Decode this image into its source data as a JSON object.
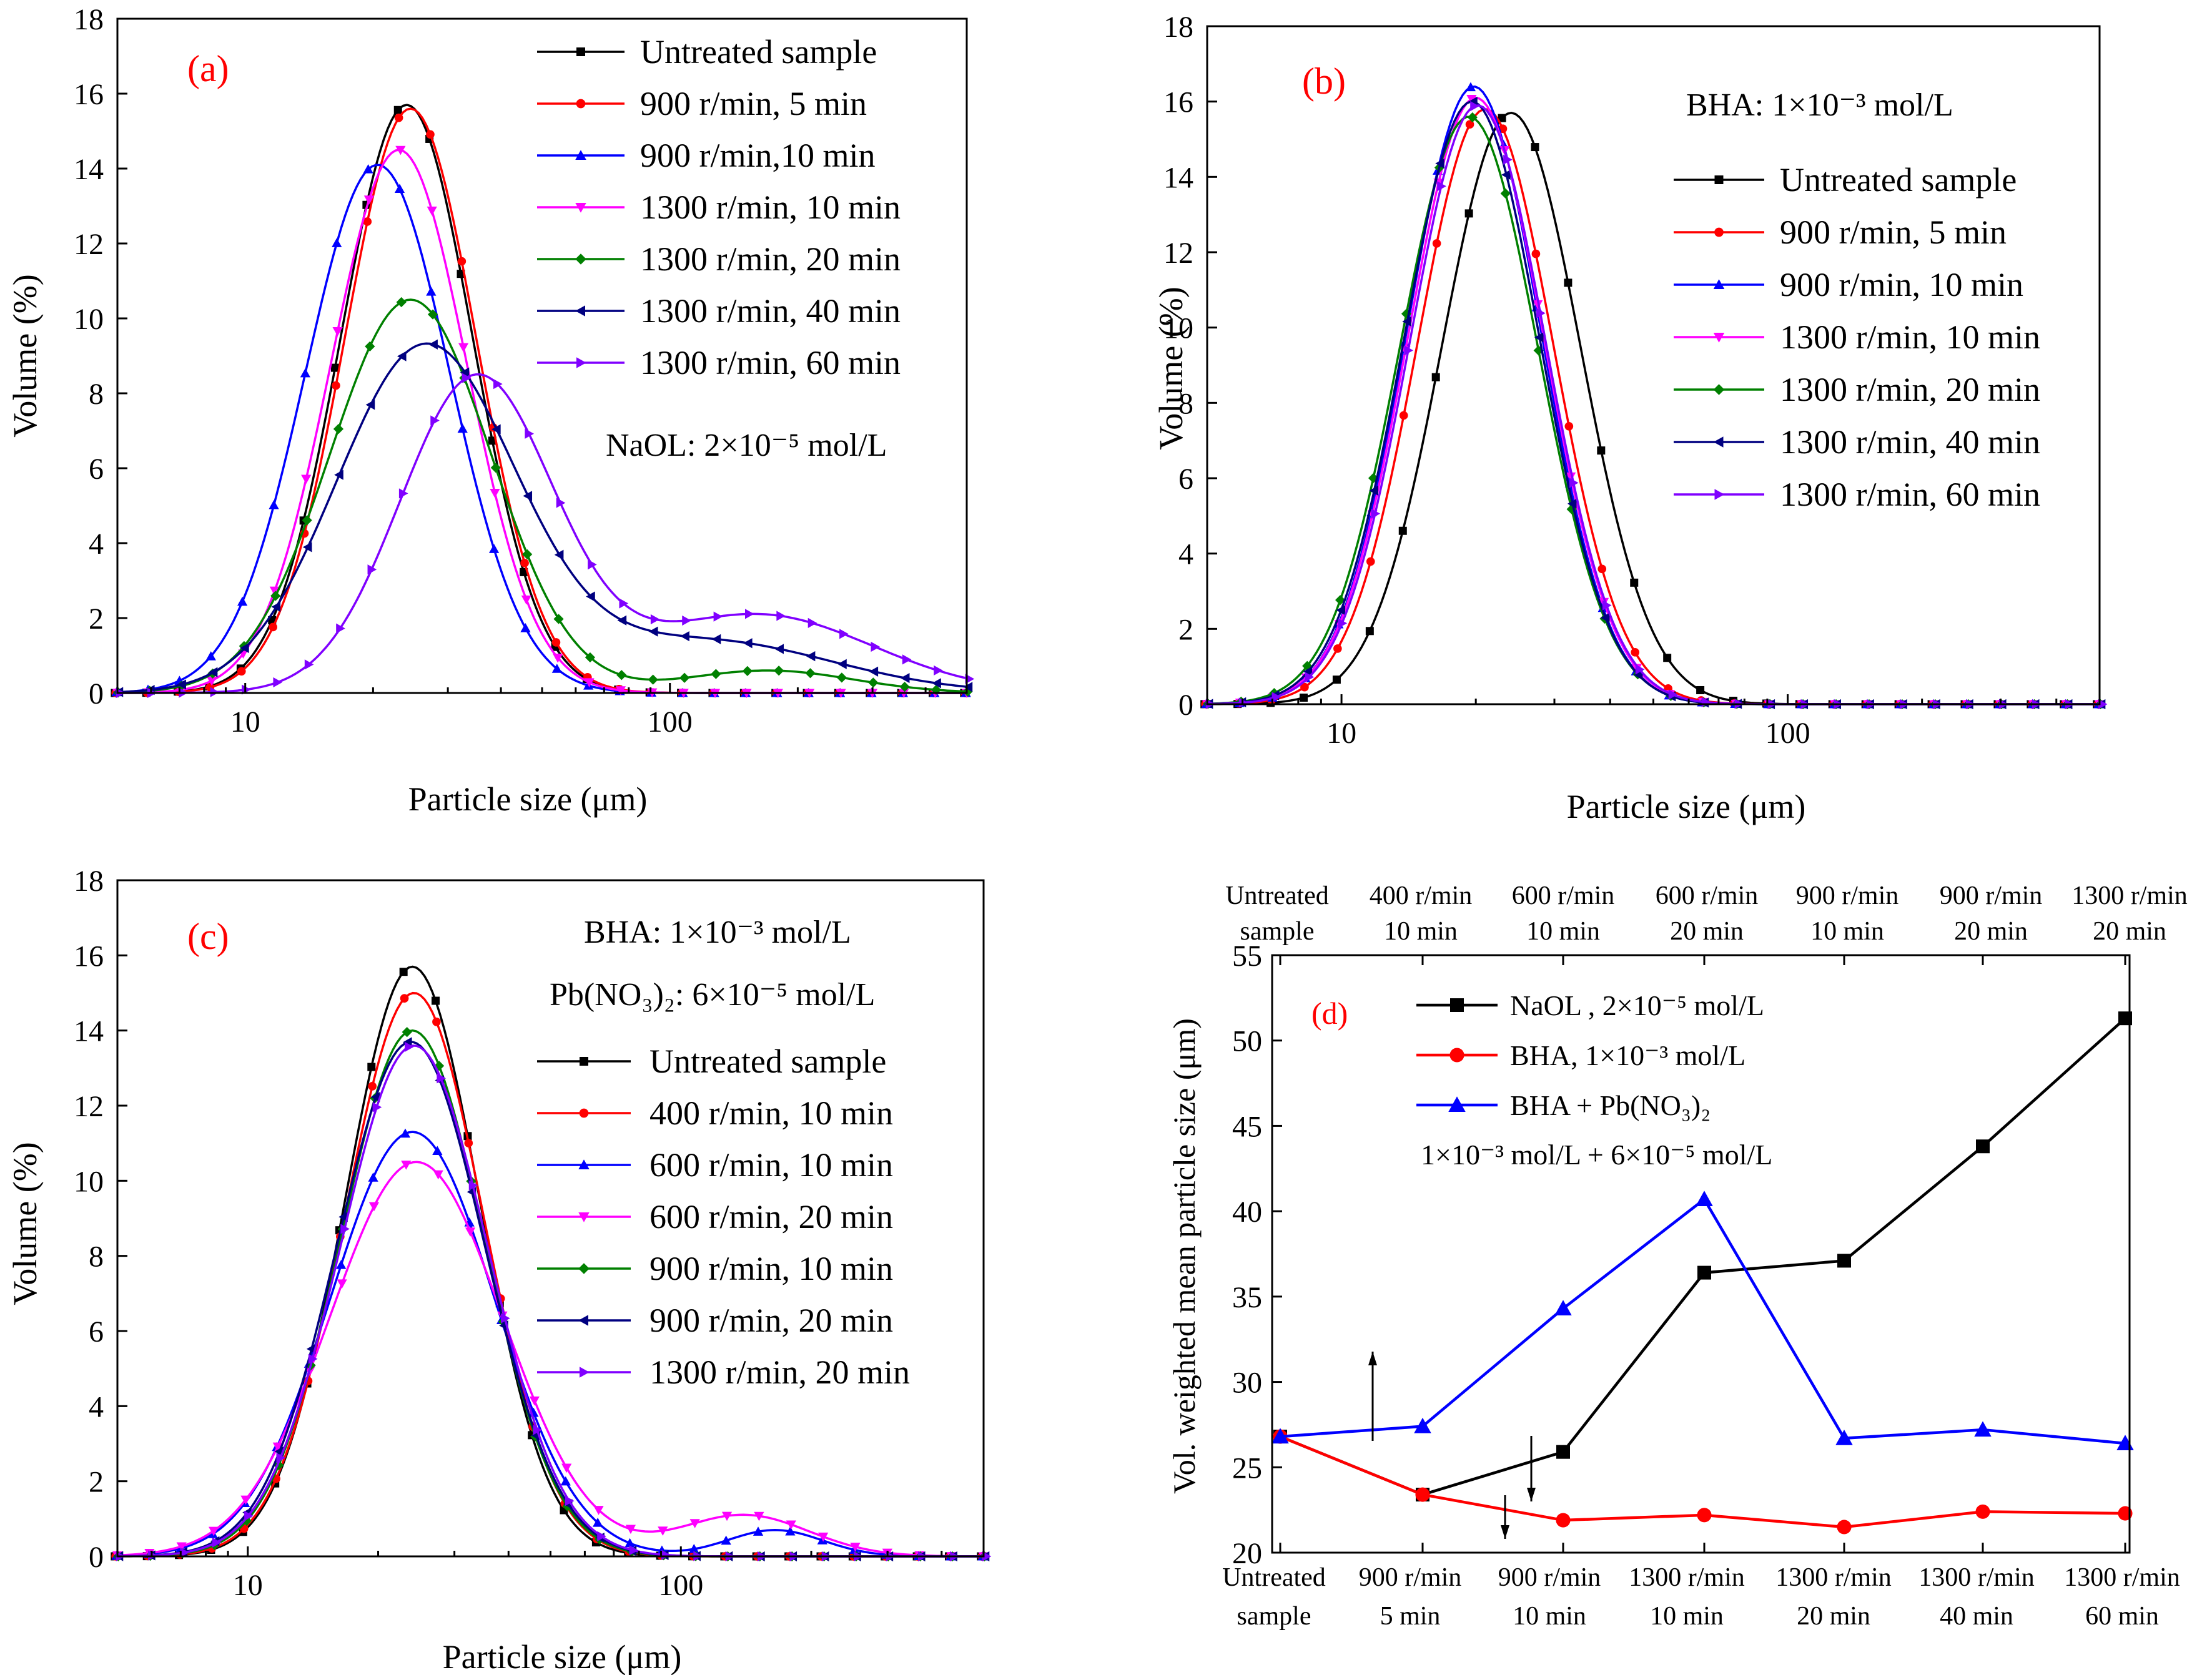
{
  "figure": {
    "panels": [
      {
        "id": "a",
        "panel_label": "(a)",
        "annotation": "NaOL: 2×10⁻⁵ mol/L",
        "xlabel": "Particle size (μm)",
        "ylabel": "Volume (%)",
        "xscale": "log",
        "xlim": [
          5,
          500
        ],
        "ylim": [
          0,
          18
        ],
        "xticks": [
          10,
          100
        ],
        "yticks": [
          0,
          2,
          4,
          6,
          8,
          10,
          12,
          14,
          16,
          18
        ],
        "legend": [
          "Untreated sample",
          "900 r/min, 5 min",
          "900 r/min,10 min",
          "1300 r/min, 10 min",
          "1300 r/min, 20 min",
          "1300 r/min, 40 min",
          "1300 r/min, 60 min"
        ]
      },
      {
        "id": "b",
        "panel_label": "(b)",
        "annotation": "BHA: 1×10⁻³ mol/L",
        "xlabel": "Particle size (μm)",
        "ylabel": "Volume (%)",
        "xscale": "log",
        "xlim": [
          5,
          500
        ],
        "ylim": [
          0,
          18
        ],
        "xticks": [
          10,
          100
        ],
        "yticks": [
          0,
          2,
          4,
          6,
          8,
          10,
          12,
          14,
          16,
          18
        ],
        "legend": [
          "Untreated sample",
          "900 r/min, 5 min",
          "900 r/min, 10 min",
          "1300 r/min, 10 min",
          "1300 r/min, 20 min",
          "1300 r/min, 40 min",
          "1300 r/min, 60 min"
        ]
      },
      {
        "id": "c",
        "panel_label": "(c)",
        "annotation": "BHA: 1×10⁻³ mol/L",
        "annotation2": "Pb(NO₃)₂: 6×10⁻⁵ mol/L",
        "xlabel": "Particle size (μm)",
        "ylabel": "Volume (%)",
        "xscale": "log",
        "xlim": [
          5,
          500
        ],
        "ylim": [
          0,
          18
        ],
        "xticks": [
          10,
          100
        ],
        "yticks": [
          0,
          2,
          4,
          6,
          8,
          10,
          12,
          14,
          16,
          18
        ],
        "legend": [
          "Untreated sample",
          "400 r/min, 10 min",
          "600 r/min, 10 min",
          "600 r/min, 20 min",
          "900 r/min, 10 min",
          "900 r/min, 20 min",
          "1300 r/min, 20 min"
        ]
      },
      {
        "id": "d",
        "panel_label": "(d)",
        "ylabel": "Vol. weighted mean particle size (μm)",
        "ylim": [
          20,
          55
        ],
        "yticks": [
          20,
          25,
          30,
          35,
          40,
          45,
          50,
          55
        ],
        "legend": [
          "NaOL , 2×10⁻⁵ mol/L",
          "BHA, 1×10⁻³ mol/L",
          "BHA + Pb(NO₃)₂"
        ],
        "legend_note": "1×10⁻³ mol/L + 6×10⁻⁵ mol/L",
        "top_categories": [
          [
            "Untreated",
            "sample"
          ],
          [
            "400 r/min",
            "10 min"
          ],
          [
            "600 r/min",
            "10 min"
          ],
          [
            "600 r/min",
            "20 min"
          ],
          [
            "900 r/min",
            "10 min"
          ],
          [
            "900 r/min",
            "20 min"
          ],
          [
            "1300 r/min",
            "20 min"
          ]
        ],
        "bottom_categories": [
          [
            "Untreated",
            "sample"
          ],
          [
            "900 r/min",
            "5 min"
          ],
          [
            "900 r/min",
            "10 min"
          ],
          [
            "1300 r/min",
            "10 min"
          ],
          [
            "1300 r/min",
            "20 min"
          ],
          [
            "1300 r/min",
            "40 min"
          ],
          [
            "1300 r/min",
            "60 min"
          ]
        ]
      }
    ]
  },
  "chart_data": [
    {
      "type": "line",
      "panel": "a",
      "title": "(a)",
      "xlabel": "Particle size (μm)",
      "ylabel": "Volume (%)",
      "xscale": "log",
      "xlim": [
        5,
        500
      ],
      "ylim": [
        0,
        18
      ],
      "series": [
        {
          "name": "Untreated sample",
          "color": "#000000",
          "marker": "square",
          "peak": 15.7,
          "mode": 24.0,
          "width": 0.155
        },
        {
          "name": "900 r/min, 5 min",
          "color": "#ff0000",
          "marker": "circle",
          "peak": 15.6,
          "mode": 24.5,
          "width": 0.155
        },
        {
          "name": "900 r/min,10 min",
          "color": "#0000ff",
          "marker": "triangle-up",
          "peak": 14.1,
          "mode": 20.5,
          "width": 0.17
        },
        {
          "name": "1300 r/min, 10 min",
          "color": "#ff00ff",
          "marker": "triangle-down",
          "peak": 14.5,
          "mode": 23.0,
          "width": 0.16
        },
        {
          "name": "1300 r/min, 20 min",
          "color": "#008000",
          "marker": "diamond",
          "peak": 10.5,
          "mode": 24.5,
          "width": 0.19,
          "tail": {
            "peak": 0.6,
            "mode": 170,
            "width": 0.2
          }
        },
        {
          "name": "1300 r/min, 40 min",
          "color": "#000080",
          "marker": "triangle-left",
          "peak": 9.2,
          "mode": 26.5,
          "width": 0.21,
          "tail": {
            "peak": 1.4,
            "mode": 120,
            "width": 0.3
          }
        },
        {
          "name": "1300 r/min, 60 min",
          "color": "#8000ff",
          "marker": "triangle-right",
          "peak": 8.4,
          "mode": 35.0,
          "width": 0.18,
          "tail": {
            "peak": 2.1,
            "mode": 160,
            "width": 0.27
          }
        }
      ]
    },
    {
      "type": "line",
      "panel": "b",
      "title": "(b)",
      "xlabel": "Particle size (μm)",
      "ylabel": "Volume (%)",
      "xscale": "log",
      "xlim": [
        5,
        500
      ],
      "ylim": [
        0,
        18
      ],
      "series": [
        {
          "name": "Untreated sample",
          "color": "#000000",
          "marker": "square",
          "peak": 15.7,
          "mode": 24.0,
          "width": 0.155
        },
        {
          "name": "900 r/min, 5 min",
          "color": "#ff0000",
          "marker": "circle",
          "peak": 15.8,
          "mode": 21.0,
          "width": 0.152
        },
        {
          "name": "900 r/min, 10 min",
          "color": "#0000ff",
          "marker": "triangle-up",
          "peak": 16.4,
          "mode": 19.8,
          "width": 0.15
        },
        {
          "name": "1300 r/min, 10 min",
          "color": "#ff00ff",
          "marker": "triangle-down",
          "peak": 16.1,
          "mode": 20.0,
          "width": 0.152
        },
        {
          "name": "1300 r/min, 20 min",
          "color": "#008000",
          "marker": "diamond",
          "peak": 15.6,
          "mode": 19.3,
          "width": 0.155
        },
        {
          "name": "1300 r/min, 40 min",
          "color": "#000080",
          "marker": "triangle-left",
          "peak": 16.0,
          "mode": 19.6,
          "width": 0.152
        },
        {
          "name": "1300 r/min, 60 min",
          "color": "#8000ff",
          "marker": "triangle-right",
          "peak": 15.9,
          "mode": 20.2,
          "width": 0.152
        }
      ]
    },
    {
      "type": "line",
      "panel": "c",
      "title": "(c)",
      "xlabel": "Particle size (μm)",
      "ylabel": "Volume (%)",
      "xscale": "log",
      "xlim": [
        5,
        500
      ],
      "ylim": [
        0,
        18
      ],
      "series": [
        {
          "name": "Untreated sample",
          "color": "#000000",
          "marker": "square",
          "peak": 15.7,
          "mode": 24.0,
          "width": 0.155
        },
        {
          "name": "400 r/min, 10 min",
          "color": "#ff0000",
          "marker": "circle",
          "peak": 15.0,
          "mode": 24.2,
          "width": 0.16
        },
        {
          "name": "600 r/min, 10 min",
          "color": "#0000ff",
          "marker": "triangle-up",
          "peak": 11.3,
          "mode": 24.0,
          "width": 0.19,
          "tail": {
            "peak": 0.7,
            "mode": 165,
            "width": 0.11
          }
        },
        {
          "name": "600 r/min, 20 min",
          "color": "#ff00ff",
          "marker": "triangle-down",
          "peak": 10.5,
          "mode": 24.5,
          "width": 0.2,
          "tail": {
            "peak": 1.1,
            "mode": 140,
            "width": 0.15
          }
        },
        {
          "name": "900 r/min, 10 min",
          "color": "#008000",
          "marker": "diamond",
          "peak": 14.0,
          "mode": 24.0,
          "width": 0.165
        },
        {
          "name": "900 r/min, 20 min",
          "color": "#000080",
          "marker": "triangle-left",
          "peak": 13.7,
          "mode": 23.8,
          "width": 0.17
        },
        {
          "name": "1300 r/min, 20 min",
          "color": "#8000ff",
          "marker": "triangle-right",
          "peak": 13.6,
          "mode": 24.2,
          "width": 0.17
        }
      ]
    },
    {
      "type": "line",
      "panel": "d",
      "title": "(d)",
      "ylabel": "Vol. weighted mean particle size (μm)",
      "ylim": [
        20,
        55
      ],
      "categories_bottom": [
        "Untreated sample",
        "900 r/min 5 min",
        "900 r/min 10 min",
        "1300 r/min 10 min",
        "1300 r/min 20 min",
        "1300 r/min 40 min",
        "1300 r/min 60 min"
      ],
      "categories_top": [
        "Untreated sample",
        "400 r/min 10 min",
        "600 r/min 10 min",
        "600 r/min 20 min",
        "900 r/min 10 min",
        "900 r/min 20 min",
        "1300 r/min 20 min"
      ],
      "series": [
        {
          "name": "NaOL , 2×10⁻⁵ mol/L",
          "color": "#000000",
          "marker": "square",
          "axis": "bottom",
          "values": [
            26.8,
            23.4,
            25.9,
            36.4,
            37.1,
            43.8,
            51.3
          ]
        },
        {
          "name": "BHA, 1×10⁻³ mol/L",
          "color": "#ff0000",
          "marker": "circle",
          "axis": "bottom",
          "values": [
            26.8,
            23.4,
            21.9,
            22.2,
            21.5,
            22.4,
            22.3
          ]
        },
        {
          "name": "BHA + Pb(NO₃)₂",
          "color": "#0000ff",
          "marker": "triangle-up",
          "axis": "top",
          "values": [
            26.8,
            27.4,
            34.3,
            40.7,
            26.7,
            27.2,
            26.4
          ]
        }
      ]
    }
  ]
}
